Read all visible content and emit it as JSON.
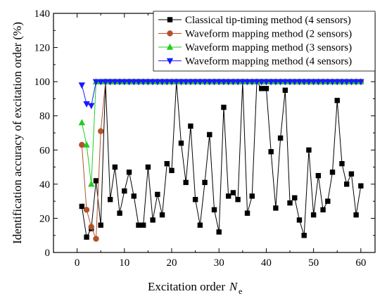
{
  "chart_data": {
    "type": "line",
    "xlabel": "Excitation order",
    "xlabel_symbol": "N",
    "xlabel_subscript": "e",
    "ylabel": "Identification accuracy of excitation order (%)",
    "xlim": [
      -5,
      63
    ],
    "ylim": [
      0,
      140
    ],
    "xticks": [
      0,
      10,
      20,
      30,
      40,
      50,
      60
    ],
    "yticks": [
      0,
      20,
      40,
      60,
      80,
      100,
      120,
      140
    ],
    "legend_position": "top-right",
    "series": [
      {
        "name": "Classical tip-timing method (4 sensors)",
        "color": "#000000",
        "marker": "square",
        "x": [
          1,
          2,
          3,
          4,
          5,
          6,
          7,
          8,
          9,
          10,
          11,
          12,
          13,
          14,
          15,
          16,
          17,
          18,
          19,
          20,
          21,
          22,
          23,
          24,
          25,
          26,
          27,
          28,
          29,
          30,
          31,
          32,
          33,
          34,
          35,
          36,
          37,
          38,
          39,
          40,
          41,
          42,
          43,
          44,
          45,
          46,
          47,
          48,
          49,
          50,
          51,
          52,
          53,
          54,
          55,
          56,
          57,
          58,
          59,
          60
        ],
        "y": [
          27,
          9,
          14,
          42,
          16,
          100,
          31,
          50,
          23,
          36,
          47,
          33,
          16,
          16,
          50,
          19,
          34,
          22,
          52,
          48,
          100,
          64,
          41,
          74,
          31,
          16,
          41,
          69,
          25,
          12,
          85,
          33,
          35,
          31,
          100,
          23,
          33,
          100,
          96,
          96,
          59,
          26,
          67,
          95,
          29,
          32,
          19,
          10,
          60,
          22,
          45,
          25,
          30,
          47,
          89,
          52,
          40,
          46,
          22,
          39
        ]
      },
      {
        "name": "Waveform mapping method (2 sensors)",
        "color": "#b5512a",
        "marker": "circle",
        "x": [
          1,
          2,
          3,
          4,
          5,
          6,
          7,
          8,
          9,
          10,
          11,
          12,
          13,
          14,
          15,
          16,
          17,
          18,
          19,
          20,
          21,
          22,
          23,
          24,
          25,
          26,
          27,
          28,
          29,
          30,
          31,
          32,
          33,
          34,
          35,
          36,
          37,
          38,
          39,
          40,
          41,
          42,
          43,
          44,
          45,
          46,
          47,
          48,
          49,
          50,
          51,
          52,
          53,
          54,
          55,
          56,
          57,
          58,
          59,
          60
        ],
        "y": [
          63,
          25,
          15,
          8,
          71,
          100,
          100,
          100,
          100,
          100,
          100,
          100,
          100,
          100,
          100,
          100,
          100,
          100,
          100,
          100,
          100,
          100,
          100,
          100,
          100,
          100,
          100,
          100,
          100,
          100,
          100,
          100,
          100,
          100,
          100,
          100,
          100,
          100,
          100,
          100,
          100,
          100,
          100,
          100,
          100,
          100,
          100,
          100,
          100,
          100,
          100,
          100,
          100,
          100,
          100,
          100,
          100,
          100,
          100,
          100
        ]
      },
      {
        "name": "Waveform mapping method (3 sensors)",
        "color": "#22cc22",
        "marker": "triangle-up",
        "x": [
          1,
          2,
          3,
          4,
          5,
          6,
          7,
          8,
          9,
          10,
          11,
          12,
          13,
          14,
          15,
          16,
          17,
          18,
          19,
          20,
          21,
          22,
          23,
          24,
          25,
          26,
          27,
          28,
          29,
          30,
          31,
          32,
          33,
          34,
          35,
          36,
          37,
          38,
          39,
          40,
          41,
          42,
          43,
          44,
          45,
          46,
          47,
          48,
          49,
          50,
          51,
          52,
          53,
          54,
          55,
          56,
          57,
          58,
          59,
          60
        ],
        "y": [
          76,
          63,
          40,
          100,
          100,
          100,
          100,
          100,
          100,
          100,
          100,
          100,
          100,
          100,
          100,
          100,
          100,
          100,
          100,
          100,
          100,
          100,
          100,
          100,
          100,
          100,
          100,
          100,
          100,
          100,
          100,
          100,
          100,
          100,
          100,
          100,
          100,
          100,
          100,
          100,
          100,
          100,
          100,
          100,
          100,
          100,
          100,
          100,
          100,
          100,
          100,
          100,
          100,
          100,
          100,
          100,
          100,
          100,
          100,
          100
        ]
      },
      {
        "name": "Waveform mapping method (4 sensors)",
        "color": "#1a1aff",
        "marker": "triangle-down",
        "x": [
          1,
          2,
          3,
          4,
          5,
          6,
          7,
          8,
          9,
          10,
          11,
          12,
          13,
          14,
          15,
          16,
          17,
          18,
          19,
          20,
          21,
          22,
          23,
          24,
          25,
          26,
          27,
          28,
          29,
          30,
          31,
          32,
          33,
          34,
          35,
          36,
          37,
          38,
          39,
          40,
          41,
          42,
          43,
          44,
          45,
          46,
          47,
          48,
          49,
          50,
          51,
          52,
          53,
          54,
          55,
          56,
          57,
          58,
          59,
          60
        ],
        "y": [
          98,
          87,
          86,
          100,
          100,
          100,
          100,
          100,
          100,
          100,
          100,
          100,
          100,
          100,
          100,
          100,
          100,
          100,
          100,
          100,
          100,
          100,
          100,
          100,
          100,
          100,
          100,
          100,
          100,
          100,
          100,
          100,
          100,
          100,
          100,
          100,
          100,
          100,
          100,
          100,
          100,
          100,
          100,
          100,
          100,
          100,
          100,
          100,
          100,
          100,
          100,
          100,
          100,
          100,
          100,
          100,
          100,
          100,
          100,
          100
        ]
      }
    ]
  }
}
